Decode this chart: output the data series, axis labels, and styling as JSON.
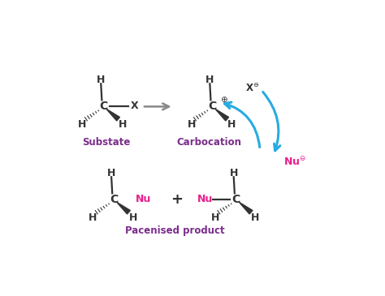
{
  "bg_color": "#ffffff",
  "title_color": "#7b2d8b",
  "nu_color": "#e91e8c",
  "arrow_color": "#29abe2",
  "gray_arrow_color": "#888888",
  "bond_color": "#333333",
  "substate_label": "Substate",
  "carbocation_label": "Carbocation",
  "product_label": "Pacenised product",
  "fig_w": 4.74,
  "fig_h": 3.65,
  "dpi": 100
}
